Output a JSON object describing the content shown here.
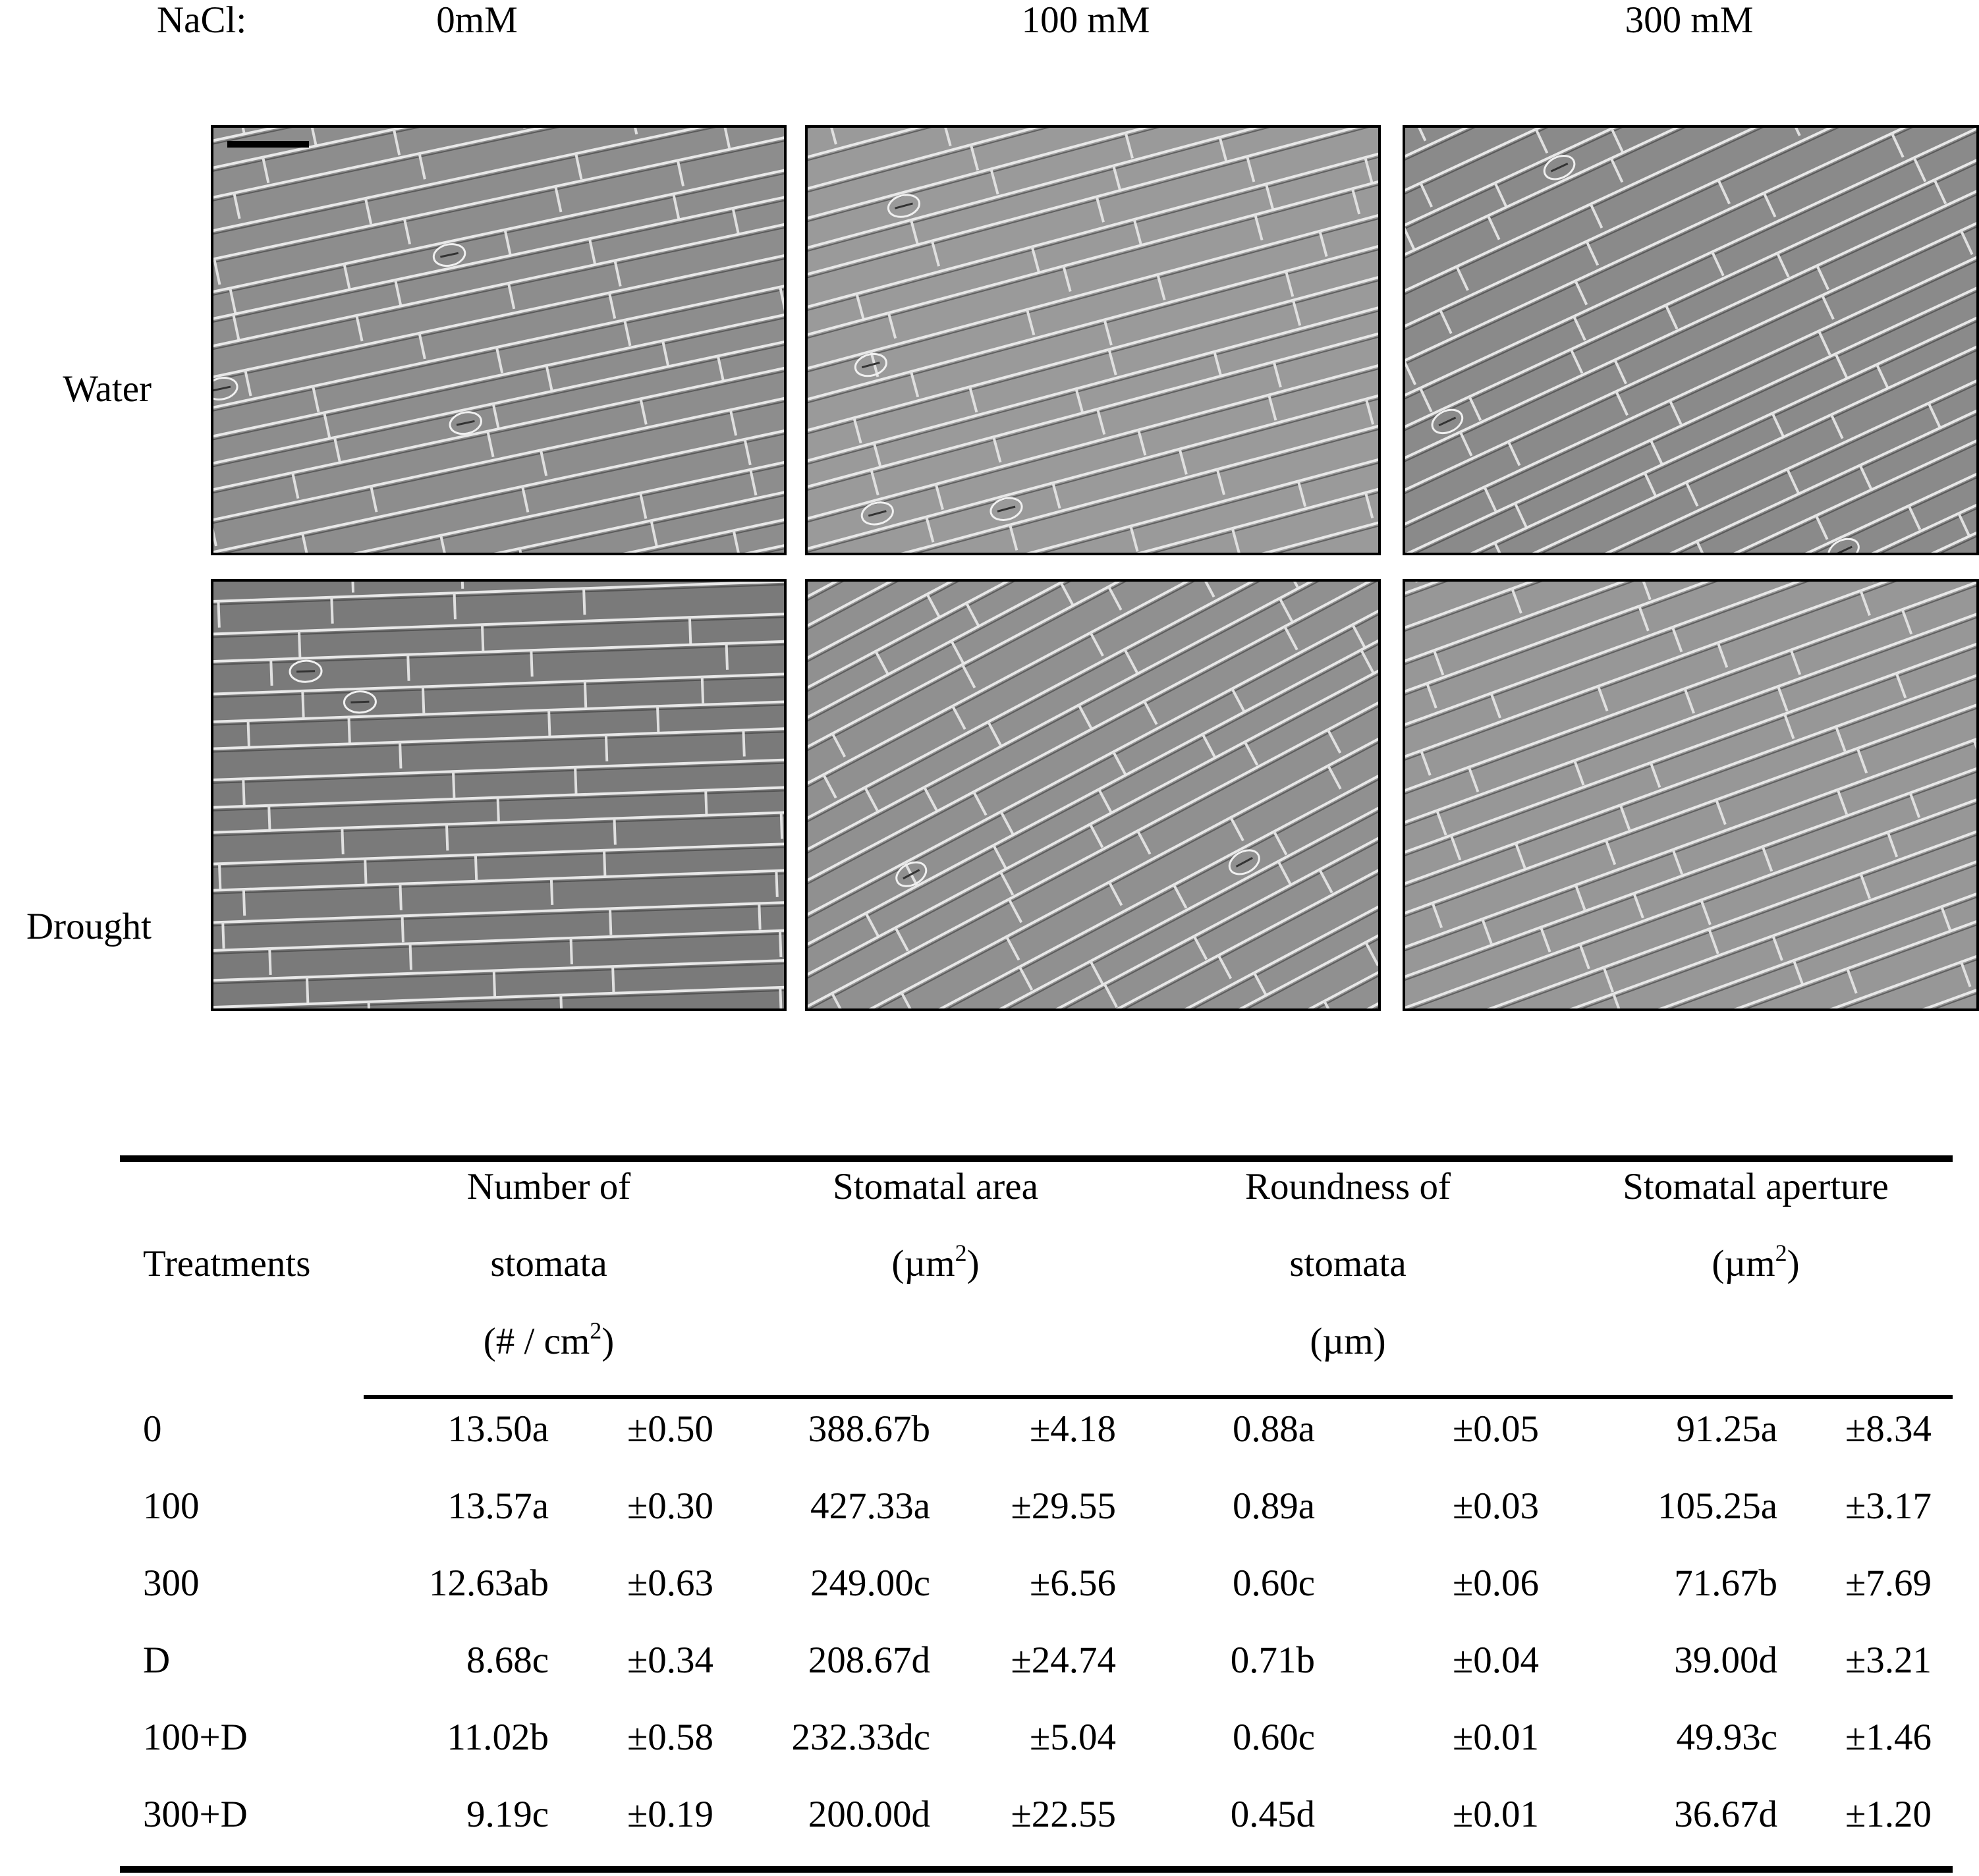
{
  "figure": {
    "nacl_label": "NaCl:",
    "columns": [
      "0mM",
      "100 mM",
      "300 mM"
    ],
    "rows": [
      "Water",
      "Drought"
    ]
  },
  "table": {
    "header": {
      "treatments": "Treatments",
      "columns": [
        {
          "lines": [
            "Number of",
            "stomata"
          ],
          "unit": "(# / cm",
          "sup": "2",
          "close": ")"
        },
        {
          "lines": [
            "Stomatal area"
          ],
          "unit": "(µm",
          "sup": "2",
          "close": ")"
        },
        {
          "lines": [
            "Roundness of",
            "stomata"
          ],
          "unit": "(µm)"
        },
        {
          "lines": [
            "Stomatal aperture"
          ],
          "unit": "(µm",
          "sup": "2",
          "close": ")"
        }
      ]
    },
    "rows": [
      [
        "0",
        "13.50a",
        "±0.50",
        "388.67b",
        "±4.18",
        "0.88a",
        "±0.05",
        "91.25a",
        "±8.34"
      ],
      [
        "100",
        "13.57a",
        "±0.30",
        "427.33a",
        "±29.55",
        "0.89a",
        "±0.03",
        "105.25a",
        "±3.17"
      ],
      [
        "300",
        "12.63ab",
        "±0.63",
        "249.00c",
        "±6.56",
        "0.60c",
        "±0.06",
        "71.67b",
        "±7.69"
      ],
      [
        "D",
        "8.68c",
        "±0.34",
        "208.67d",
        "±24.74",
        "0.71b",
        "±0.04",
        "39.00d",
        "±3.21"
      ],
      [
        "100+D",
        "11.02b",
        "±0.58",
        "232.33dc",
        "±5.04",
        "0.60c",
        "±0.01",
        "49.93c",
        "±1.46"
      ],
      [
        "300+D",
        "9.19c",
        "±0.19",
        "200.00d",
        "±22.55",
        "0.45d",
        "±0.01",
        "36.67d",
        "±1.20"
      ]
    ]
  }
}
